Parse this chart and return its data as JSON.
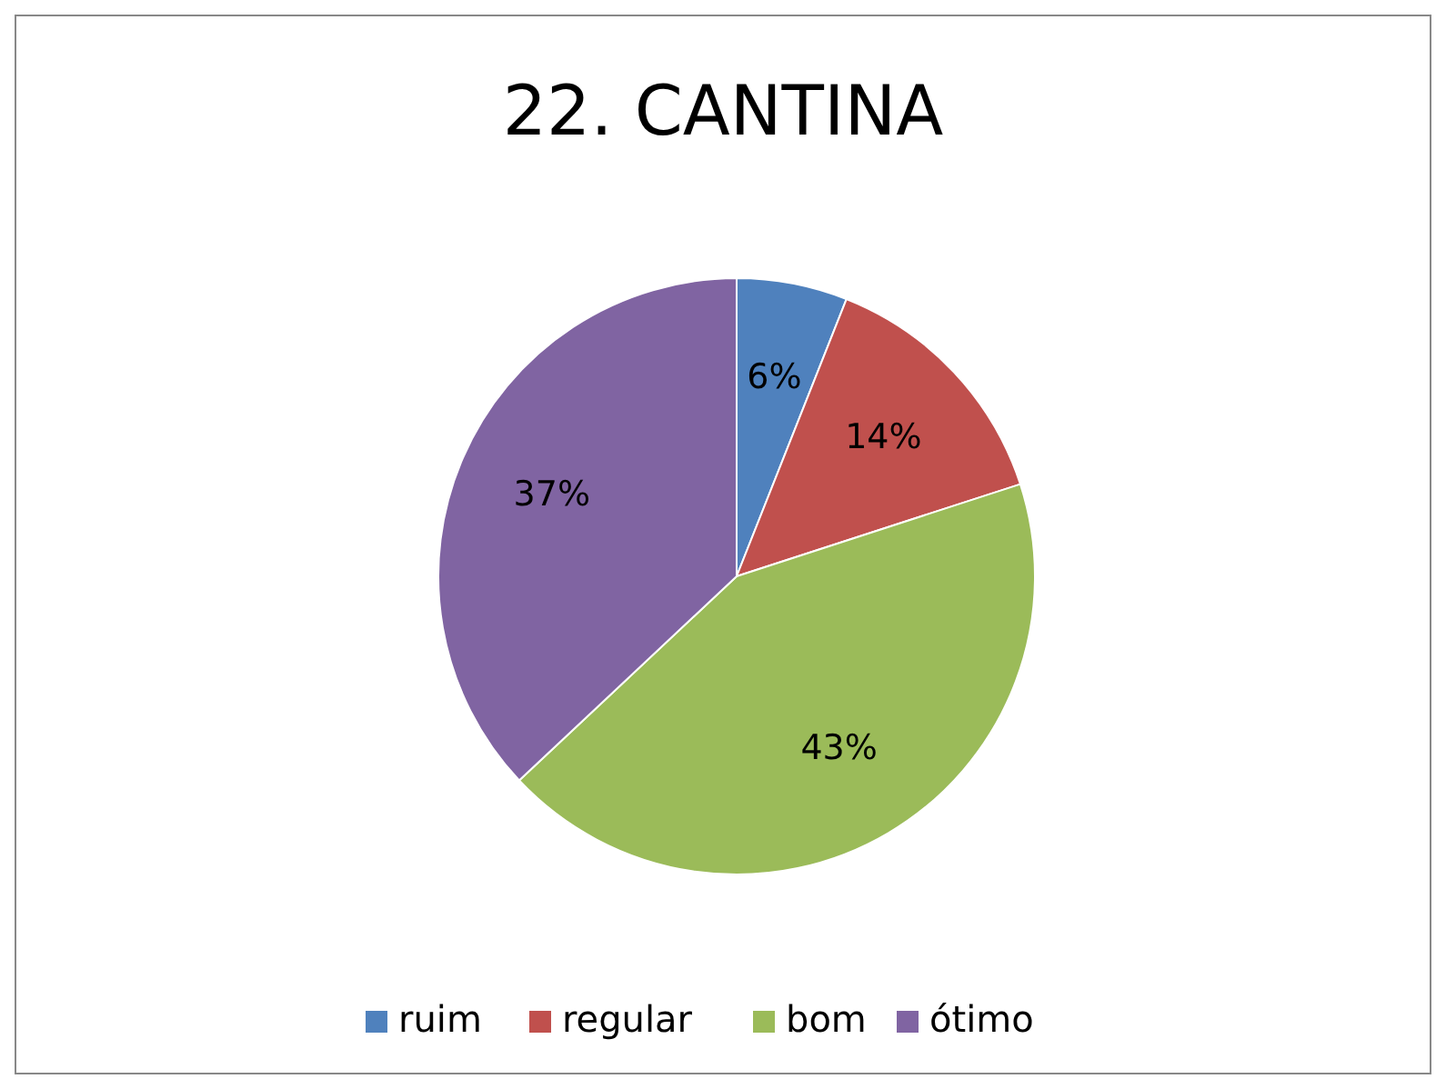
{
  "chart_data": {
    "type": "pie",
    "title": "22. CANTINA",
    "categories": [
      "ruim",
      "regular",
      "bom",
      "ótimo"
    ],
    "values": [
      6,
      14,
      43,
      37
    ],
    "colors": [
      "#4f81bd",
      "#c0504d",
      "#9bbb59",
      "#8064a2"
    ],
    "value_labels": [
      "6%",
      "14%",
      "43%",
      "37%"
    ],
    "legend": "bottom"
  }
}
